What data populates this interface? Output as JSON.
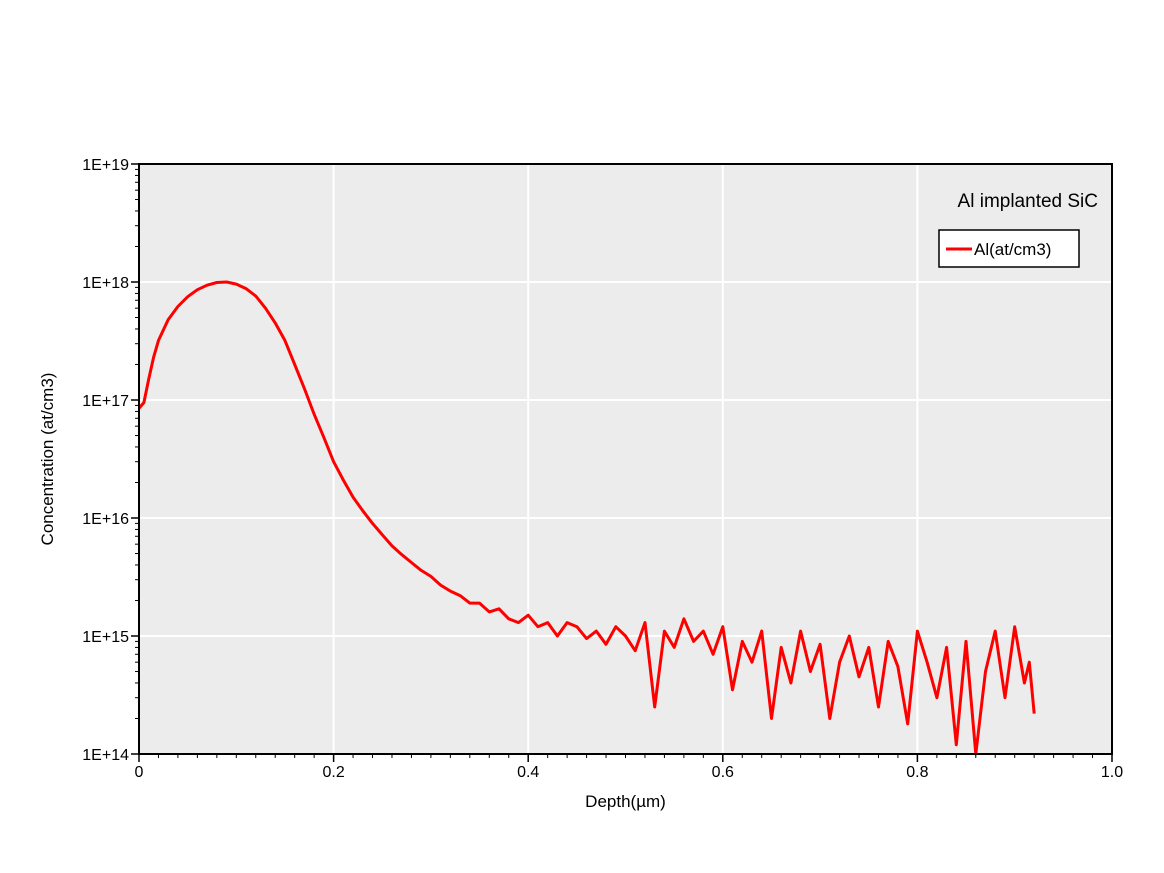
{
  "chart_data": {
    "type": "line",
    "title": "",
    "annotation": "Al implanted SiC",
    "xlabel": "Depth(µm)",
    "ylabel": "Concentration (at/cm3)",
    "xlim": [
      0,
      1.0
    ],
    "ylim": [
      100000000000000.0,
      1e+19
    ],
    "y_scale": "log",
    "grid": true,
    "legend_position": "top-right",
    "x_tick_labels": [
      "0",
      "0.2",
      "0.4",
      "0.6",
      "0.8",
      "1.0"
    ],
    "x_tick_values": [
      0,
      0.2,
      0.4,
      0.6,
      0.8,
      1.0
    ],
    "y_tick_labels": [
      "1E+14",
      "1E+15",
      "1E+16",
      "1E+17",
      "1E+18",
      "1E+19"
    ],
    "y_tick_values": [
      100000000000000.0,
      1000000000000000.0,
      1e+16,
      1e+17,
      1e+18,
      1e+19
    ],
    "colors": {
      "series": "#ff0000",
      "plot_background": "#ececec",
      "grid": "#ffffff",
      "axis": "#000000"
    },
    "series": [
      {
        "name": "Al(at/cm3)",
        "x": [
          0.0,
          0.005,
          0.01,
          0.015,
          0.02,
          0.03,
          0.04,
          0.05,
          0.06,
          0.07,
          0.08,
          0.09,
          0.1,
          0.11,
          0.12,
          0.13,
          0.14,
          0.15,
          0.16,
          0.17,
          0.18,
          0.19,
          0.2,
          0.21,
          0.22,
          0.23,
          0.24,
          0.25,
          0.26,
          0.27,
          0.28,
          0.29,
          0.3,
          0.31,
          0.32,
          0.33,
          0.34,
          0.35,
          0.36,
          0.37,
          0.38,
          0.39,
          0.4,
          0.41,
          0.42,
          0.43,
          0.44,
          0.45,
          0.46,
          0.47,
          0.48,
          0.49,
          0.5,
          0.51,
          0.52,
          0.53,
          0.54,
          0.55,
          0.56,
          0.57,
          0.58,
          0.59,
          0.6,
          0.61,
          0.62,
          0.63,
          0.64,
          0.65,
          0.66,
          0.67,
          0.68,
          0.69,
          0.7,
          0.71,
          0.72,
          0.73,
          0.74,
          0.75,
          0.76,
          0.77,
          0.78,
          0.79,
          0.8,
          0.81,
          0.82,
          0.83,
          0.84,
          0.85,
          0.86,
          0.87,
          0.88,
          0.89,
          0.9,
          0.91,
          0.915,
          0.92
        ],
        "y": [
          8.5e+16,
          9.5e+16,
          1.5e+17,
          2.3e+17,
          3.2e+17,
          4.8e+17,
          6.2e+17,
          7.5e+17,
          8.6e+17,
          9.4e+17,
          9.9e+17,
          1e+18,
          9.6e+17,
          8.8e+17,
          7.6e+17,
          6e+17,
          4.5e+17,
          3.2e+17,
          2e+17,
          1.25e+17,
          7.6e+16,
          4.8e+16,
          3e+16,
          2.1e+16,
          1.5e+16,
          1.15e+16,
          9000000000000000.0,
          7200000000000000.0,
          5800000000000000.0,
          4900000000000000.0,
          4200000000000000.0,
          3600000000000000.0,
          3200000000000000.0,
          2700000000000000.0,
          2400000000000000.0,
          2200000000000000.0,
          1900000000000000.0,
          1900000000000000.0,
          1600000000000000.0,
          1700000000000000.0,
          1400000000000000.0,
          1300000000000000.0,
          1500000000000000.0,
          1200000000000000.0,
          1300000000000000.0,
          1000000000000000.0,
          1300000000000000.0,
          1200000000000000.0,
          950000000000000.0,
          1100000000000000.0,
          850000000000000.0,
          1200000000000000.0,
          1000000000000000.0,
          750000000000000.0,
          1300000000000000.0,
          250000000000000.0,
          1100000000000000.0,
          800000000000000.0,
          1400000000000000.0,
          900000000000000.0,
          1100000000000000.0,
          700000000000000.0,
          1200000000000000.0,
          350000000000000.0,
          900000000000000.0,
          600000000000000.0,
          1100000000000000.0,
          200000000000000.0,
          800000000000000.0,
          400000000000000.0,
          1100000000000000.0,
          500000000000000.0,
          850000000000000.0,
          200000000000000.0,
          600000000000000.0,
          1000000000000000.0,
          450000000000000.0,
          800000000000000.0,
          250000000000000.0,
          900000000000000.0,
          550000000000000.0,
          180000000000000.0,
          1100000000000000.0,
          600000000000000.0,
          300000000000000.0,
          800000000000000.0,
          120000000000000.0,
          900000000000000.0,
          100000000000000.0,
          500000000000000.0,
          1100000000000000.0,
          300000000000000.0,
          1200000000000000.0,
          400000000000000.0,
          600000000000000.0,
          220000000000000.0
        ]
      }
    ]
  }
}
